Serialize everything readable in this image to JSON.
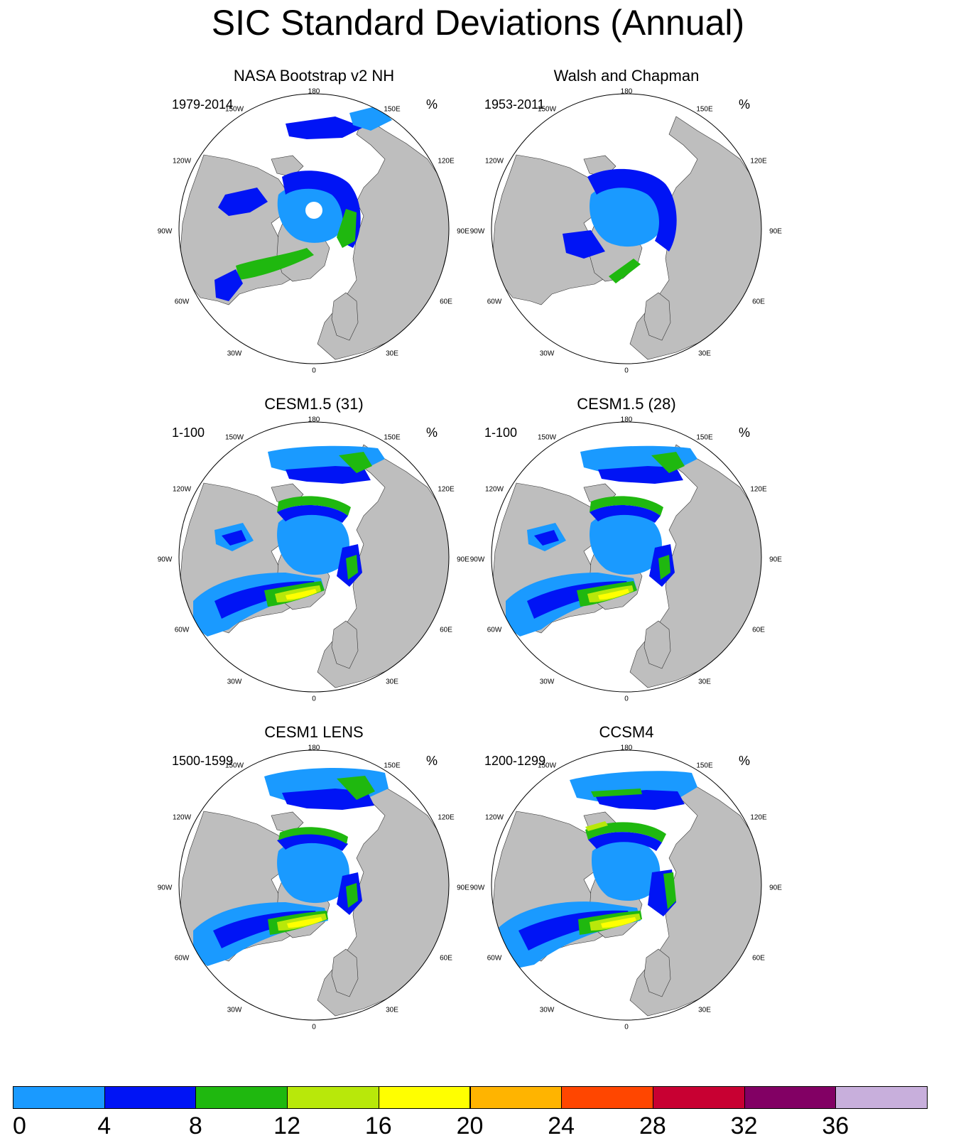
{
  "title": "SIC Standard Deviations (Annual)",
  "panels": [
    {
      "id": "nasa",
      "title": "NASA Bootstrap v2 NH",
      "period": "1979-2014",
      "unit": "%"
    },
    {
      "id": "walsh",
      "title": "Walsh and Chapman",
      "period": "1953-2011",
      "unit": "%"
    },
    {
      "id": "cesm15_31",
      "title": "CESM1.5 (31)",
      "period": "1-100",
      "unit": "%"
    },
    {
      "id": "cesm15_28",
      "title": "CESM1.5 (28)",
      "period": "1-100",
      "unit": "%"
    },
    {
      "id": "lens",
      "title": "CESM1 LENS",
      "period": "1500-1599",
      "unit": "%"
    },
    {
      "id": "ccsm4",
      "title": "CCSM4",
      "period": "1200-1299",
      "unit": "%"
    }
  ],
  "longitude_labels": {
    "top": "180",
    "bottom": "0",
    "lon_150w": "150W",
    "lon_150e": "150E",
    "lon_120w": "120W",
    "lon_120e": "120E",
    "lon_90w": "90W",
    "lon_90e": "90E",
    "lon_60w": "60W",
    "lon_60e": "60E",
    "lon_30w": "30W",
    "lon_30e": "30E"
  },
  "colorbar": {
    "labels": [
      "0",
      "4",
      "8",
      "12",
      "16",
      "20",
      "24",
      "28",
      "32",
      "36"
    ],
    "colors": [
      "#1a9aff",
      "#0014f5",
      "#1fb80f",
      "#b8e80a",
      "#ffff00",
      "#ffb400",
      "#ff4600",
      "#c80032",
      "#820064",
      "#c8afdc"
    ]
  },
  "colors": {
    "land": "#bebebe",
    "ocean": "#ffffff",
    "sd_0_4": "#1a9aff",
    "sd_4_8": "#0014f5",
    "sd_8_12": "#1fb80f",
    "sd_12_16": "#b8e80a",
    "sd_16_20": "#ffff00"
  }
}
